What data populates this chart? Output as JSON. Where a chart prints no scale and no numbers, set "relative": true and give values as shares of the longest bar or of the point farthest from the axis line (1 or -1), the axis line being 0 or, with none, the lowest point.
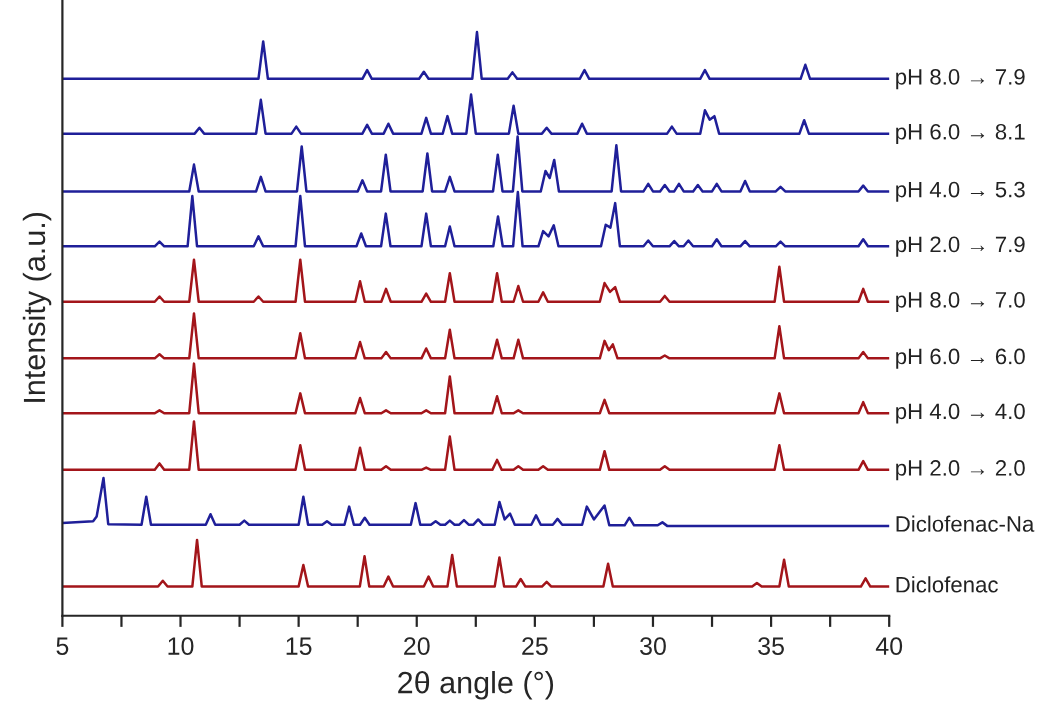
{
  "chart_data": {
    "type": "line",
    "relative": true,
    "xlabel": "2θ angle (°)",
    "ylabel": "Intensity (a.u.)",
    "xlim": [
      5,
      40
    ],
    "xticks": [
      5,
      {
        "value": 7.5,
        "label": null
      },
      10,
      {
        "value": 12.5,
        "label": null
      },
      15,
      {
        "value": 17.5,
        "label": null
      },
      20,
      {
        "value": 22.5,
        "label": null
      },
      25,
      {
        "value": 27.5,
        "label": null
      },
      30,
      {
        "value": 32.5,
        "label": null
      },
      35,
      {
        "value": 37.5,
        "label": null
      },
      40
    ],
    "grid": false,
    "legend": false,
    "tick_labels": "x",
    "series": [
      {
        "name": "pH 8.0 → 7.9",
        "color": "#1f1f99",
        "x": [
          5,
          13.3,
          13.5,
          13.7,
          17.7,
          17.9,
          18.1,
          20.1,
          20.3,
          20.5,
          22.35,
          22.55,
          22.75,
          23.85,
          24.05,
          24.25,
          26.9,
          27.1,
          27.3,
          32,
          32.2,
          32.4,
          36.25,
          36.45,
          36.65,
          40
        ],
        "values": [
          0.92,
          0.92,
          0.984,
          0.92,
          0.92,
          0.935,
          0.92,
          0.92,
          0.932,
          0.92,
          0.92,
          1,
          0.92,
          0.92,
          0.931,
          0.92,
          0.92,
          0.935,
          0.92,
          0.92,
          0.935,
          0.92,
          0.92,
          0.944,
          0.92,
          0.92
        ]
      },
      {
        "name": "pH 6.0 → 8.1",
        "color": "#1f1f99",
        "x": [
          5,
          10.6,
          10.8,
          11,
          13.2,
          13.4,
          13.6,
          14.7,
          14.9,
          15.1,
          17.7,
          17.9,
          18.1,
          18.6,
          18.8,
          19,
          20.2,
          20.4,
          20.6,
          21.1,
          21.3,
          21.5,
          22.1,
          22.3,
          22.5,
          23.9,
          24.1,
          24.3,
          25.3,
          25.5,
          25.7,
          26.8,
          27,
          27.2,
          30.6,
          30.8,
          31,
          32,
          32.2,
          32.4,
          32.6,
          32.8,
          36.2,
          36.4,
          36.6,
          40
        ],
        "values": [
          0.826,
          0.826,
          0.836,
          0.826,
          0.826,
          0.884,
          0.826,
          0.826,
          0.838,
          0.826,
          0.826,
          0.841,
          0.826,
          0.826,
          0.843,
          0.826,
          0.826,
          0.853,
          0.826,
          0.826,
          0.856,
          0.826,
          0.826,
          0.893,
          0.826,
          0.826,
          0.874,
          0.826,
          0.826,
          0.836,
          0.826,
          0.826,
          0.843,
          0.826,
          0.826,
          0.838,
          0.826,
          0.826,
          0.866,
          0.85,
          0.856,
          0.826,
          0.826,
          0.849,
          0.826,
          0.826
        ]
      },
      {
        "name": "pH 4.0 → 5.3",
        "color": "#1f1f99",
        "x": [
          5,
          10.37,
          10.57,
          10.77,
          13.2,
          13.4,
          13.6,
          14.93,
          15.13,
          15.33,
          17.5,
          17.7,
          17.9,
          18.49,
          18.69,
          18.89,
          20.25,
          20.45,
          20.65,
          21.2,
          21.4,
          21.6,
          23.23,
          23.43,
          23.63,
          24.07,
          24.27,
          24.47,
          25.25,
          25.45,
          25.63,
          25.82,
          26.02,
          28.25,
          28.45,
          28.65,
          29.6,
          29.8,
          30,
          30.3,
          30.5,
          30.7,
          30.9,
          31.1,
          31.3,
          31.7,
          31.9,
          32.1,
          32.5,
          32.7,
          32.9,
          33.7,
          33.9,
          34.1,
          35.2,
          35.4,
          35.6,
          38.7,
          38.9,
          39.1,
          40
        ],
        "values": [
          0.727,
          0.727,
          0.773,
          0.727,
          0.727,
          0.752,
          0.727,
          0.727,
          0.804,
          0.727,
          0.727,
          0.746,
          0.727,
          0.727,
          0.79,
          0.727,
          0.727,
          0.792,
          0.727,
          0.727,
          0.752,
          0.727,
          0.727,
          0.79,
          0.727,
          0.727,
          0.821,
          0.727,
          0.727,
          0.762,
          0.75,
          0.781,
          0.727,
          0.727,
          0.806,
          0.727,
          0.727,
          0.74,
          0.727,
          0.727,
          0.738,
          0.727,
          0.727,
          0.74,
          0.727,
          0.727,
          0.738,
          0.727,
          0.727,
          0.74,
          0.727,
          0.727,
          0.745,
          0.727,
          0.727,
          0.735,
          0.727,
          0.727,
          0.737,
          0.727,
          0.727
        ]
      },
      {
        "name": "pH 2.0 → 7.9",
        "color": "#1f1f99",
        "x": [
          5,
          8.91,
          9.11,
          9.31,
          10.3,
          10.5,
          10.7,
          13.1,
          13.3,
          13.5,
          14.87,
          15.07,
          15.27,
          17.45,
          17.65,
          17.85,
          18.49,
          18.69,
          18.89,
          20.2,
          20.4,
          20.6,
          21.2,
          21.4,
          21.6,
          23.24,
          23.44,
          23.64,
          24.08,
          24.28,
          24.48,
          25.15,
          25.35,
          25.58,
          25.8,
          26,
          27.8,
          28,
          28.2,
          28.4,
          28.6,
          29.6,
          29.8,
          30,
          30.7,
          30.9,
          31.1,
          31.3,
          31.5,
          31.7,
          32.5,
          32.7,
          32.9,
          33.7,
          33.9,
          34.1,
          35.2,
          35.4,
          35.6,
          38.7,
          38.9,
          39.1,
          40
        ],
        "values": [
          0.633,
          0.633,
          0.641,
          0.633,
          0.633,
          0.719,
          0.633,
          0.633,
          0.65,
          0.633,
          0.633,
          0.719,
          0.633,
          0.633,
          0.655,
          0.633,
          0.633,
          0.689,
          0.633,
          0.633,
          0.689,
          0.633,
          0.633,
          0.667,
          0.633,
          0.633,
          0.684,
          0.633,
          0.633,
          0.726,
          0.633,
          0.633,
          0.659,
          0.65,
          0.669,
          0.633,
          0.633,
          0.67,
          0.665,
          0.707,
          0.633,
          0.633,
          0.643,
          0.633,
          0.633,
          0.642,
          0.633,
          0.633,
          0.643,
          0.633,
          0.633,
          0.645,
          0.633,
          0.633,
          0.642,
          0.633,
          0.633,
          0.641,
          0.633,
          0.633,
          0.645,
          0.633,
          0.633
        ]
      },
      {
        "name": "pH 8.0 → 7.0",
        "color": "#a3151a",
        "x": [
          5,
          8.91,
          9.11,
          9.31,
          10.37,
          10.57,
          10.77,
          13.1,
          13.3,
          13.5,
          14.87,
          15.07,
          15.27,
          17.4,
          17.6,
          17.8,
          18.5,
          18.7,
          18.9,
          20.2,
          20.4,
          20.6,
          21.2,
          21.4,
          21.6,
          23.2,
          23.4,
          23.6,
          24.1,
          24.3,
          24.5,
          25.15,
          25.35,
          25.55,
          27.75,
          27.95,
          28.18,
          28.4,
          28.6,
          30.3,
          30.5,
          30.7,
          35.15,
          35.35,
          35.55,
          38.7,
          38.9,
          39.1,
          40
        ],
        "values": [
          0.538,
          0.538,
          0.547,
          0.538,
          0.538,
          0.61,
          0.538,
          0.538,
          0.547,
          0.538,
          0.538,
          0.61,
          0.538,
          0.538,
          0.573,
          0.538,
          0.538,
          0.56,
          0.538,
          0.538,
          0.552,
          0.538,
          0.538,
          0.587,
          0.538,
          0.538,
          0.587,
          0.538,
          0.538,
          0.565,
          0.538,
          0.538,
          0.554,
          0.538,
          0.538,
          0.57,
          0.555,
          0.563,
          0.538,
          0.538,
          0.548,
          0.538,
          0.538,
          0.598,
          0.538,
          0.538,
          0.56,
          0.538,
          0.538
        ]
      },
      {
        "name": "pH 6.0 → 6.0",
        "color": "#a3151a",
        "x": [
          5,
          8.91,
          9.11,
          9.31,
          10.37,
          10.57,
          10.77,
          14.87,
          15.07,
          15.27,
          17.4,
          17.6,
          17.8,
          18.5,
          18.7,
          18.9,
          20.2,
          20.4,
          20.6,
          21.2,
          21.4,
          21.6,
          23.2,
          23.4,
          23.6,
          24.1,
          24.3,
          24.5,
          27.75,
          27.95,
          28.13,
          28.3,
          28.5,
          30.3,
          30.5,
          30.7,
          35.15,
          35.35,
          35.55,
          38.7,
          38.9,
          39.1,
          40
        ],
        "values": [
          0.441,
          0.441,
          0.448,
          0.441,
          0.441,
          0.518,
          0.441,
          0.441,
          0.484,
          0.441,
          0.441,
          0.469,
          0.441,
          0.441,
          0.452,
          0.441,
          0.441,
          0.458,
          0.441,
          0.441,
          0.49,
          0.441,
          0.441,
          0.473,
          0.441,
          0.441,
          0.473,
          0.441,
          0.441,
          0.471,
          0.455,
          0.465,
          0.441,
          0.441,
          0.446,
          0.441,
          0.441,
          0.496,
          0.441,
          0.441,
          0.452,
          0.441,
          0.441
        ]
      },
      {
        "name": "pH 4.0 → 4.0",
        "color": "#a3151a",
        "x": [
          5,
          8.91,
          9.11,
          9.31,
          10.37,
          10.57,
          10.77,
          14.87,
          15.07,
          15.27,
          17.4,
          17.6,
          17.8,
          18.5,
          18.7,
          18.9,
          20.2,
          20.4,
          20.6,
          21.2,
          21.4,
          21.6,
          23.2,
          23.4,
          23.6,
          24.1,
          24.3,
          24.5,
          27.75,
          27.95,
          28.15,
          35.15,
          35.35,
          35.55,
          38.7,
          38.9,
          39.1,
          40
        ],
        "values": [
          0.347,
          0.347,
          0.352,
          0.347,
          0.347,
          0.432,
          0.347,
          0.347,
          0.381,
          0.347,
          0.347,
          0.373,
          0.347,
          0.347,
          0.352,
          0.347,
          0.347,
          0.352,
          0.347,
          0.347,
          0.41,
          0.347,
          0.347,
          0.376,
          0.347,
          0.347,
          0.352,
          0.347,
          0.347,
          0.37,
          0.347,
          0.347,
          0.381,
          0.347,
          0.347,
          0.366,
          0.347,
          0.347
        ]
      },
      {
        "name": "pH 2.0 → 2.0",
        "color": "#a3151a",
        "x": [
          5,
          8.91,
          9.11,
          9.31,
          10.37,
          10.57,
          10.77,
          14.87,
          15.07,
          15.27,
          17.4,
          17.6,
          17.8,
          18.5,
          18.7,
          18.9,
          20.2,
          20.4,
          20.6,
          21.2,
          21.4,
          21.6,
          23.2,
          23.4,
          23.6,
          24.1,
          24.3,
          24.5,
          25.15,
          25.35,
          25.55,
          27.75,
          27.95,
          28.15,
          30.3,
          30.5,
          30.7,
          35.15,
          35.35,
          35.55,
          38.7,
          38.9,
          39.1,
          40
        ],
        "values": [
          0.25,
          0.25,
          0.261,
          0.25,
          0.25,
          0.333,
          0.25,
          0.25,
          0.292,
          0.25,
          0.25,
          0.288,
          0.25,
          0.25,
          0.256,
          0.25,
          0.25,
          0.254,
          0.25,
          0.25,
          0.307,
          0.25,
          0.25,
          0.267,
          0.25,
          0.25,
          0.256,
          0.25,
          0.25,
          0.256,
          0.25,
          0.25,
          0.282,
          0.25,
          0.25,
          0.256,
          0.25,
          0.25,
          0.292,
          0.25,
          0.25,
          0.265,
          0.25,
          0.25
        ]
      },
      {
        "name": "Diclofenac-Na",
        "color": "#1f1f99",
        "x": [
          5,
          6.3,
          6.45,
          6.74,
          6.94,
          8.35,
          8.55,
          8.75,
          11.07,
          11.27,
          11.47,
          12.5,
          12.7,
          12.9,
          15,
          15.2,
          15.4,
          16,
          16.2,
          16.4,
          16.94,
          17.14,
          17.34,
          17.6,
          17.8,
          18,
          19.75,
          19.95,
          20.15,
          20.6,
          20.8,
          21,
          21.2,
          21.4,
          21.6,
          21.8,
          22,
          22.2,
          22.4,
          22.6,
          22.8,
          23.3,
          23.5,
          23.72,
          23.95,
          24.15,
          24.85,
          25.05,
          25.25,
          25.76,
          25.96,
          26.16,
          27,
          27.2,
          27.5,
          27.95,
          28.15,
          28.8,
          29,
          29.2,
          30.2,
          30.4,
          30.6,
          40
        ],
        "values": [
          0.159,
          0.162,
          0.17,
          0.236,
          0.157,
          0.156,
          0.204,
          0.156,
          0.156,
          0.174,
          0.156,
          0.156,
          0.163,
          0.156,
          0.156,
          0.204,
          0.156,
          0.156,
          0.162,
          0.156,
          0.156,
          0.187,
          0.156,
          0.156,
          0.168,
          0.156,
          0.156,
          0.193,
          0.156,
          0.156,
          0.162,
          0.156,
          0.156,
          0.163,
          0.156,
          0.156,
          0.164,
          0.156,
          0.156,
          0.165,
          0.156,
          0.156,
          0.195,
          0.165,
          0.175,
          0.156,
          0.156,
          0.172,
          0.156,
          0.156,
          0.166,
          0.156,
          0.156,
          0.187,
          0.165,
          0.189,
          0.155,
          0.155,
          0.168,
          0.155,
          0.155,
          0.16,
          0.154,
          0.154
        ]
      },
      {
        "name": "Diclofenac",
        "color": "#a3151a",
        "x": [
          5,
          9.05,
          9.25,
          9.45,
          10.5,
          10.7,
          10.9,
          15,
          15.2,
          15.4,
          17.59,
          17.79,
          17.99,
          18.6,
          18.8,
          19,
          20.3,
          20.5,
          20.7,
          21.3,
          21.5,
          21.7,
          23.3,
          23.5,
          23.7,
          24.2,
          24.4,
          24.6,
          25.3,
          25.5,
          25.7,
          27.9,
          28.1,
          28.3,
          34.2,
          34.4,
          34.6,
          35.35,
          35.55,
          35.75,
          38.8,
          39,
          39.2,
          40
        ],
        "values": [
          0.05,
          0.05,
          0.06,
          0.05,
          0.05,
          0.13,
          0.05,
          0.05,
          0.087,
          0.05,
          0.05,
          0.102,
          0.05,
          0.05,
          0.067,
          0.05,
          0.05,
          0.067,
          0.05,
          0.05,
          0.104,
          0.05,
          0.05,
          0.1,
          0.05,
          0.05,
          0.063,
          0.05,
          0.05,
          0.058,
          0.05,
          0.05,
          0.089,
          0.05,
          0.05,
          0.056,
          0.05,
          0.05,
          0.096,
          0.05,
          0.05,
          0.064,
          0.05,
          0.05
        ]
      }
    ]
  }
}
